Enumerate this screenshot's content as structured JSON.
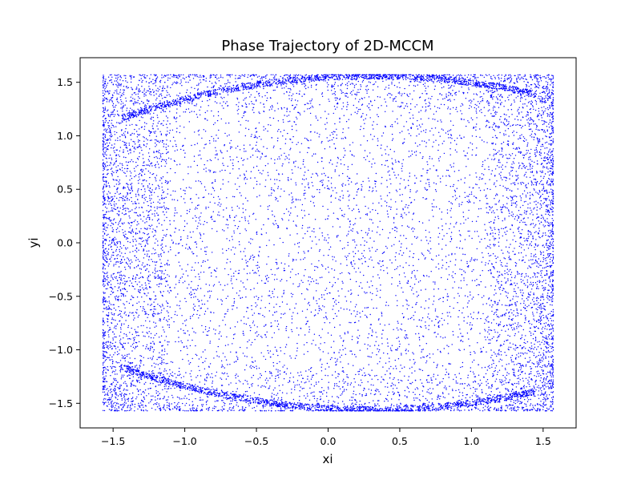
{
  "chart_data": {
    "type": "scatter",
    "title": "Phase Trajectory of 2D-MCCM",
    "xlabel": "xi",
    "ylabel": "yi",
    "xlim": [
      -1.73,
      1.73
    ],
    "ylim": [
      -1.73,
      1.73
    ],
    "xticks": [
      -1.5,
      -1.0,
      -0.5,
      0.0,
      0.5,
      1.0,
      1.5
    ],
    "yticks": [
      -1.5,
      -1.0,
      -0.5,
      0.0,
      0.5,
      1.0,
      1.5
    ],
    "xtick_labels": [
      "−1.5",
      "−1.0",
      "−0.5",
      "0.0",
      "0.5",
      "1.0",
      "1.5"
    ],
    "ytick_labels": [
      "−1.5",
      "−1.0",
      "−0.5",
      "0.0",
      "0.5",
      "1.0",
      "1.5"
    ],
    "grid": false,
    "legend": "none",
    "point_color": "#0000ff",
    "data_range": {
      "x": [
        -1.5708,
        1.5708
      ],
      "y": [
        -1.5708,
        1.5708
      ]
    },
    "density_notes": "Points fill the square densely; denser bands near left/right edges and arcs near top (y≈1.3-1.55) and bottom (y≈-1.3 to -1.55).",
    "sample_points": [
      [
        -0.3,
        1.53
      ],
      [
        0.3,
        1.55
      ],
      [
        0.5,
        1.45
      ],
      [
        -0.8,
        1.4
      ],
      [
        -1.2,
        1.3
      ],
      [
        0.0,
        -1.56
      ],
      [
        -0.3,
        -1.53
      ],
      [
        -0.5,
        -1.45
      ],
      [
        0.8,
        -1.4
      ],
      [
        1.2,
        -1.3
      ],
      [
        1.5,
        1.2
      ],
      [
        -1.5,
        -1.2
      ],
      [
        1.5,
        -1.2
      ],
      [
        -1.5,
        1.2
      ],
      [
        0.0,
        0.0
      ],
      [
        0.5,
        0.5
      ],
      [
        -0.5,
        -0.5
      ],
      [
        1.0,
        -0.8
      ],
      [
        -1.0,
        0.8
      ]
    ]
  }
}
